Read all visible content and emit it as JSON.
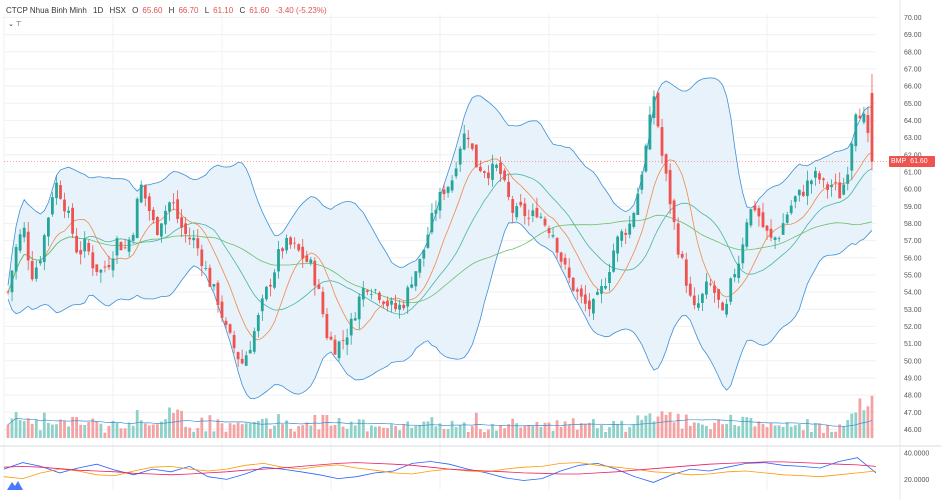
{
  "header": {
    "symbol_name": "CTCP Nhua Binh Minh",
    "interval": "1D",
    "exchange": "HSX",
    "ohlc": {
      "o_label": "O",
      "o_value": "65.60",
      "h_label": "H",
      "h_value": "66.70",
      "l_label": "L",
      "l_value": "61.10",
      "c_label": "C",
      "c_value": "61.60",
      "change": "-3.40 (-5.23%)"
    },
    "collapse_label": "⌄ ⊤"
  },
  "last_price": {
    "ticker": "BMP",
    "value": "61.60"
  },
  "colors": {
    "up": "#26a69a",
    "down": "#ef5350",
    "band": "#3d8fd6",
    "band_fill": "#e8f2fb",
    "ma_orange": "#f08a4b",
    "ma_green": "#6bbf6b",
    "vol_up": "#8fd1c9",
    "vol_down": "#f3a3a3",
    "grid": "#eef0f3"
  },
  "chart_data": {
    "type": "candlestick",
    "y_axis_price": {
      "ticks": [
        "70.00",
        "69.00",
        "68.00",
        "67.00",
        "66.00",
        "65.00",
        "64.00",
        "63.00",
        "62.00",
        "61.00",
        "60.00",
        "59.00",
        "58.00",
        "57.00",
        "56.00",
        "55.00",
        "54.00",
        "53.00",
        "52.00",
        "51.00",
        "50.00",
        "49.00",
        "48.00",
        "47.00",
        "46.00"
      ],
      "range": [
        45.5,
        70.2
      ]
    },
    "y_axis_oscillator": {
      "ticks": [
        "40.0000",
        "20.0000"
      ]
    },
    "overlays": [
      "Bollinger Bands",
      "MA",
      "MA",
      "Volume"
    ],
    "close_path": [
      [
        0,
        54.0
      ],
      [
        4,
        56.5
      ],
      [
        8,
        57.8
      ],
      [
        12,
        55.0
      ],
      [
        16,
        55.8
      ],
      [
        20,
        58.0
      ],
      [
        24,
        60.5
      ],
      [
        28,
        59.5
      ],
      [
        32,
        58.0
      ],
      [
        36,
        56.2
      ],
      [
        40,
        56.8
      ],
      [
        44,
        55.5
      ],
      [
        48,
        55.2
      ],
      [
        52,
        55.8
      ],
      [
        56,
        57.0
      ],
      [
        60,
        56.5
      ],
      [
        64,
        57.5
      ],
      [
        68,
        60.3
      ],
      [
        72,
        59.0
      ],
      [
        76,
        57.5
      ],
      [
        80,
        58.6
      ],
      [
        84,
        59.4
      ],
      [
        88,
        58.0
      ],
      [
        92,
        57.2
      ],
      [
        96,
        57.0
      ],
      [
        100,
        55.8
      ],
      [
        104,
        54.5
      ],
      [
        108,
        53.5
      ],
      [
        112,
        51.8
      ],
      [
        116,
        50.8
      ],
      [
        120,
        49.8
      ],
      [
        124,
        50.8
      ],
      [
        128,
        52.2
      ],
      [
        132,
        53.8
      ],
      [
        136,
        55.0
      ],
      [
        140,
        56.5
      ],
      [
        144,
        56.8
      ],
      [
        148,
        56.5
      ],
      [
        152,
        56.0
      ],
      [
        156,
        55.5
      ],
      [
        160,
        53.8
      ],
      [
        164,
        51.5
      ],
      [
        168,
        50.8
      ],
      [
        172,
        51.2
      ],
      [
        176,
        52.0
      ],
      [
        180,
        53.5
      ],
      [
        184,
        54.5
      ],
      [
        188,
        54.2
      ],
      [
        192,
        53.8
      ],
      [
        196,
        53.2
      ],
      [
        200,
        53.0
      ],
      [
        204,
        53.5
      ],
      [
        208,
        55.0
      ],
      [
        212,
        55.8
      ],
      [
        216,
        57.5
      ],
      [
        220,
        59.0
      ],
      [
        224,
        60.0
      ],
      [
        228,
        60.5
      ],
      [
        232,
        62.5
      ],
      [
        236,
        63.5
      ],
      [
        240,
        61.5
      ],
      [
        244,
        61.2
      ],
      [
        248,
        61.0
      ],
      [
        252,
        61.3
      ],
      [
        256,
        59.8
      ],
      [
        260,
        58.5
      ],
      [
        264,
        58.8
      ],
      [
        268,
        58.2
      ],
      [
        272,
        58.8
      ],
      [
        276,
        58.0
      ],
      [
        280,
        57.5
      ],
      [
        284,
        56.0
      ],
      [
        288,
        54.8
      ],
      [
        292,
        54.0
      ],
      [
        296,
        53.3
      ],
      [
        300,
        53.0
      ],
      [
        304,
        53.8
      ],
      [
        308,
        55.0
      ],
      [
        312,
        56.8
      ],
      [
        316,
        57.5
      ],
      [
        320,
        58.0
      ],
      [
        324,
        60.0
      ],
      [
        328,
        62.5
      ],
      [
        332,
        65.5
      ],
      [
        336,
        62.0
      ],
      [
        340,
        59.5
      ],
      [
        344,
        56.8
      ],
      [
        348,
        55.0
      ],
      [
        352,
        52.8
      ],
      [
        356,
        53.5
      ],
      [
        360,
        54.5
      ],
      [
        364,
        53.8
      ],
      [
        368,
        52.2
      ],
      [
        372,
        54.8
      ],
      [
        376,
        56.0
      ],
      [
        380,
        58.5
      ],
      [
        384,
        59.0
      ],
      [
        388,
        57.8
      ],
      [
        392,
        57.0
      ],
      [
        396,
        57.3
      ],
      [
        400,
        58.5
      ],
      [
        404,
        59.4
      ],
      [
        408,
        59.8
      ],
      [
        412,
        60.5
      ],
      [
        416,
        60.8
      ],
      [
        420,
        60.0
      ],
      [
        424,
        60.3
      ],
      [
        428,
        59.6
      ],
      [
        432,
        61.5
      ],
      [
        436,
        65.0
      ],
      [
        440,
        64.0
      ],
      [
        444,
        61.6
      ]
    ],
    "rsi_path": [
      0.55,
      0.72,
      0.62,
      0.45,
      0.58,
      0.68,
      0.52,
      0.4,
      0.55,
      0.48,
      0.62,
      0.35,
      0.28,
      0.42,
      0.6,
      0.55,
      0.48,
      0.4,
      0.3,
      0.35,
      0.45,
      0.5,
      0.7,
      0.75,
      0.68,
      0.55,
      0.45,
      0.32,
      0.25,
      0.3,
      0.5,
      0.65,
      0.7,
      0.55,
      0.35,
      0.2,
      0.4,
      0.55,
      0.5,
      0.6,
      0.7,
      0.72,
      0.65,
      0.62,
      0.58,
      0.75,
      0.85,
      0.45
    ],
    "stoch_path": [
      0.35,
      0.3,
      0.45,
      0.55,
      0.5,
      0.4,
      0.38,
      0.5,
      0.6,
      0.62,
      0.55,
      0.5,
      0.55,
      0.65,
      0.7,
      0.6,
      0.55,
      0.62,
      0.66,
      0.58,
      0.52,
      0.45,
      0.42,
      0.5,
      0.55,
      0.5,
      0.48,
      0.55,
      0.6,
      0.62,
      0.7,
      0.72,
      0.65,
      0.6,
      0.55,
      0.48,
      0.45,
      0.4,
      0.42,
      0.48,
      0.5,
      0.45,
      0.4,
      0.38,
      0.35,
      0.4,
      0.45,
      0.5
    ],
    "slow_path": [
      0.6,
      0.62,
      0.6,
      0.56,
      0.52,
      0.5,
      0.48,
      0.44,
      0.42,
      0.4,
      0.42,
      0.45,
      0.48,
      0.52,
      0.55,
      0.58,
      0.62,
      0.66,
      0.7,
      0.72,
      0.7,
      0.68,
      0.65,
      0.6,
      0.55,
      0.52,
      0.5,
      0.48,
      0.45,
      0.44,
      0.42,
      0.42,
      0.45,
      0.48,
      0.52,
      0.56,
      0.6,
      0.64,
      0.68,
      0.7,
      0.72,
      0.74,
      0.74,
      0.72,
      0.7,
      0.68,
      0.66,
      0.62
    ]
  }
}
